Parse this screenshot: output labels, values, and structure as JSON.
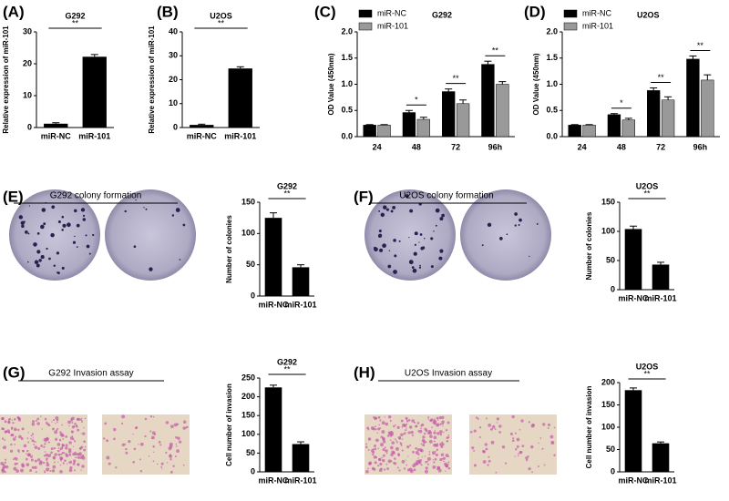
{
  "chart_data": [
    {
      "type": "bar",
      "panel": "(A)",
      "title": "G292",
      "ylabel": "Relative expression of miR-101",
      "categories": [
        "miR-NC",
        "miR-101"
      ],
      "values": [
        1.2,
        22.2
      ],
      "errors": [
        0.3,
        0.7
      ],
      "color": "#000000",
      "ylim": [
        0,
        30
      ],
      "yticks": [
        0,
        10,
        20,
        30
      ],
      "annotations": [
        "**"
      ]
    },
    {
      "type": "bar",
      "panel": "(B)",
      "title": "U2OS",
      "ylabel": "Relative expression of miR-101",
      "categories": [
        "miR-NC",
        "miR-101"
      ],
      "values": [
        1.1,
        24.7
      ],
      "errors": [
        0.3,
        0.7
      ],
      "color": "#000000",
      "ylim": [
        0,
        40
      ],
      "yticks": [
        0,
        10,
        20,
        30,
        40
      ],
      "annotations": [
        "**"
      ]
    },
    {
      "type": "grouped_bar",
      "panel": "(C)",
      "title": "G292",
      "ylabel": "OD Value (450nm)",
      "categories": [
        "24",
        "48",
        "72",
        "96h"
      ],
      "series": [
        {
          "name": "miR-NC",
          "color": "#000000",
          "values": [
            0.22,
            0.46,
            0.86,
            1.38
          ],
          "errors": [
            0.01,
            0.04,
            0.05,
            0.06
          ]
        },
        {
          "name": "miR-101",
          "color": "#999999",
          "values": [
            0.22,
            0.33,
            0.63,
            1.0
          ],
          "errors": [
            0.01,
            0.04,
            0.07,
            0.05
          ]
        }
      ],
      "ylim": [
        0,
        2.0
      ],
      "yticks": [
        {
          "value": 0,
          "label": "0.0"
        },
        0.5,
        {
          "value": 1,
          "label": "1.0"
        },
        1.5,
        {
          "value": 2,
          "label": "2.0"
        }
      ],
      "annotations": [
        null,
        "*",
        "**",
        "**"
      ]
    },
    {
      "type": "grouped_bar",
      "panel": "(D)",
      "title": "U2OS",
      "ylabel": "OD Value (450nm)",
      "categories": [
        "24",
        "48",
        "72",
        "96h"
      ],
      "series": [
        {
          "name": "miR-NC",
          "color": "#000000",
          "values": [
            0.22,
            0.42,
            0.88,
            1.48
          ],
          "errors": [
            0.01,
            0.02,
            0.05,
            0.06
          ]
        },
        {
          "name": "miR-101",
          "color": "#999999",
          "values": [
            0.22,
            0.32,
            0.7,
            1.08
          ],
          "errors": [
            0.01,
            0.03,
            0.06,
            0.1
          ]
        }
      ],
      "ylim": [
        0,
        2.0
      ],
      "yticks": [
        {
          "value": 0,
          "label": "0.0"
        },
        0.5,
        {
          "value": 1,
          "label": "1.0"
        },
        1.5,
        {
          "value": 2,
          "label": "2.0"
        }
      ],
      "annotations": [
        null,
        "*",
        "**",
        "**"
      ]
    },
    {
      "type": "bar",
      "panel": "(E)",
      "image_caption": "G292 colony formation",
      "title": "G292",
      "ylabel": "Number of colonies",
      "categories": [
        "miR-NC",
        "miR-101"
      ],
      "values": [
        125,
        46
      ],
      "errors": [
        8,
        4
      ],
      "color": "#000000",
      "ylim": [
        0,
        150
      ],
      "yticks": [
        0,
        50,
        100,
        150
      ],
      "annotations": [
        "**"
      ]
    },
    {
      "type": "bar",
      "panel": "(F)",
      "image_caption": "U2OS colony formation",
      "title": "U2OS",
      "ylabel": "Number of colonies",
      "categories": [
        "miR-NC",
        "miR-101"
      ],
      "values": [
        104,
        43
      ],
      "errors": [
        5,
        4
      ],
      "color": "#000000",
      "ylim": [
        0,
        150
      ],
      "yticks": [
        0,
        50,
        100,
        150
      ],
      "annotations": [
        "**"
      ]
    },
    {
      "type": "bar",
      "panel": "(G)",
      "image_caption": "G292 Invasion assay",
      "title": "G292",
      "ylabel": "Cell number of invasion",
      "categories": [
        "miR-NC",
        "miR-101"
      ],
      "values": [
        225,
        74
      ],
      "errors": [
        6,
        6
      ],
      "color": "#000000",
      "ylim": [
        0,
        250
      ],
      "yticks": [
        0,
        50,
        100,
        150,
        200,
        250
      ],
      "annotations": [
        "**"
      ]
    },
    {
      "type": "bar",
      "panel": "(H)",
      "image_caption": "U2OS Invasion assay",
      "title": "U2OS",
      "ylabel": "Cell number of invasion",
      "categories": [
        "miR-NC",
        "miR-101"
      ],
      "values": [
        183,
        64
      ],
      "errors": [
        5,
        3
      ],
      "color": "#000000",
      "ylim": [
        0,
        200
      ],
      "yticks": [
        0,
        50,
        100,
        150,
        200
      ],
      "annotations": [
        "**"
      ]
    }
  ]
}
